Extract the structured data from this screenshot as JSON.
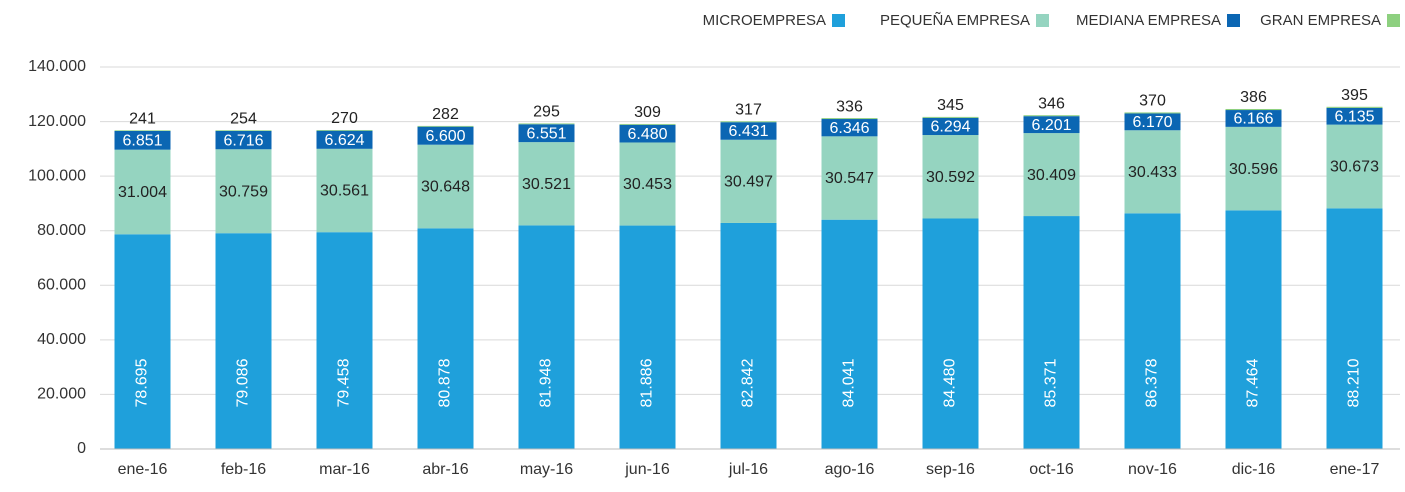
{
  "chart_data": {
    "type": "stacked_bar",
    "categories": [
      "ene-16",
      "feb-16",
      "mar-16",
      "abr-16",
      "may-16",
      "jun-16",
      "jul-16",
      "ago-16",
      "sep-16",
      "oct-16",
      "nov-16",
      "dic-16",
      "ene-17"
    ],
    "series": [
      {
        "name": "MICROEMPRESA",
        "color": "#1fa0db",
        "values": [
          78695,
          79086,
          79458,
          80878,
          81948,
          81886,
          82842,
          84041,
          84480,
          85371,
          86378,
          87464,
          88210
        ],
        "value_labels": [
          "78.695",
          "79.086",
          "79.458",
          "80.878",
          "81.948",
          "81.886",
          "82.842",
          "84.041",
          "84.480",
          "85.371",
          "86.378",
          "87.464",
          "88.210"
        ]
      },
      {
        "name": "PEQUEÑA EMPRESA",
        "color": "#95d4c0",
        "values": [
          31004,
          30759,
          30561,
          30648,
          30521,
          30453,
          30497,
          30547,
          30592,
          30409,
          30433,
          30596,
          30673
        ],
        "value_labels": [
          "31.004",
          "30.759",
          "30.561",
          "30.648",
          "30.521",
          "30.453",
          "30.497",
          "30.547",
          "30.592",
          "30.409",
          "30.433",
          "30.596",
          "30.673"
        ]
      },
      {
        "name": "MEDIANA EMPRESA",
        "color": "#0b66b3",
        "values": [
          6851,
          6716,
          6624,
          6600,
          6551,
          6480,
          6431,
          6346,
          6294,
          6201,
          6170,
          6166,
          6135
        ],
        "value_labels": [
          "6.851",
          "6.716",
          "6.624",
          "6.600",
          "6.551",
          "6.480",
          "6.431",
          "6.346",
          "6.294",
          "6.201",
          "6.170",
          "6.166",
          "6.135"
        ]
      },
      {
        "name": "GRAN EMPRESA",
        "color": "#8dd07f",
        "values": [
          241,
          254,
          270,
          282,
          295,
          309,
          317,
          336,
          345,
          346,
          370,
          386,
          395
        ]
      }
    ],
    "ylim": [
      0,
      140000
    ],
    "yticks": [
      0,
      {
        "value": 20000,
        "label": "20.000"
      },
      {
        "value": 40000,
        "label": "40.000"
      },
      {
        "value": 60000,
        "label": "60.000"
      },
      {
        "value": 80000,
        "label": "80.000"
      },
      {
        "value": 100000,
        "label": "100.000"
      },
      {
        "value": 120000,
        "label": "120.000"
      },
      {
        "value": 140000,
        "label": "140.000"
      }
    ],
    "grid": true,
    "legend": "top-right"
  }
}
